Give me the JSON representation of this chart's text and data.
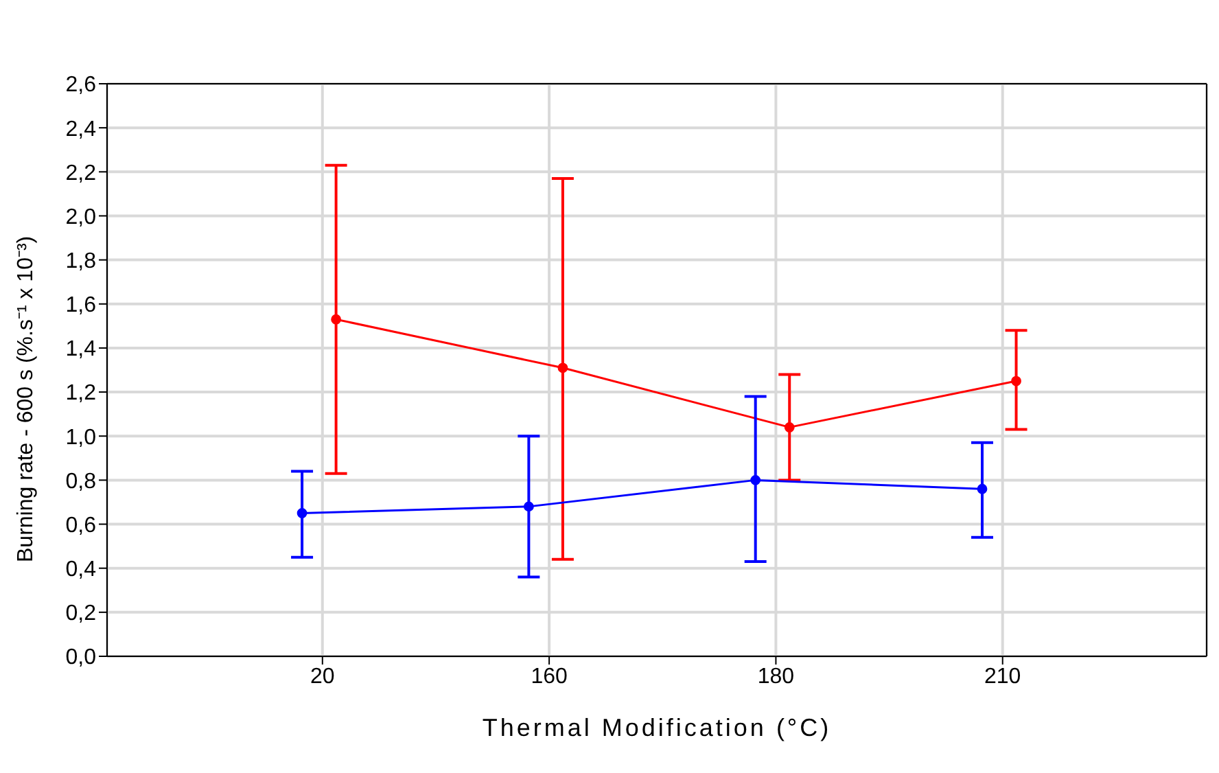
{
  "chart_data": {
    "type": "line",
    "xlabel": "Thermal Modification (°C)",
    "ylabel": "Burning rate - 600 s (%.s⁻¹ x 10⁻³)",
    "categories": [
      "20",
      "160",
      "180",
      "210"
    ],
    "series": [
      {
        "color": "#ff0000",
        "values": [
          1.53,
          1.31,
          1.04,
          1.25
        ],
        "errors": [
          [
            0.83,
            2.23
          ],
          [
            0.44,
            2.17
          ],
          [
            0.8,
            1.28
          ],
          [
            1.03,
            1.48
          ]
        ]
      },
      {
        "color": "#0000ff",
        "values": [
          0.65,
          0.68,
          0.8,
          0.76
        ],
        "errors": [
          [
            0.45,
            0.84
          ],
          [
            0.36,
            1.0
          ],
          [
            0.43,
            1.18
          ],
          [
            0.54,
            0.97
          ]
        ]
      }
    ],
    "ylim": [
      0,
      2.6
    ],
    "yticks": [
      {
        "value": 0,
        "label": "0,0"
      },
      {
        "value": 0.2,
        "label": "0,2"
      },
      {
        "value": 0.4,
        "label": "0,4"
      },
      {
        "value": 0.6,
        "label": "0,6"
      },
      {
        "value": 0.8,
        "label": "0,8"
      },
      {
        "value": 1.0,
        "label": "1,0"
      },
      {
        "value": 1.2,
        "label": "1,2"
      },
      {
        "value": 1.4,
        "label": "1,4"
      },
      {
        "value": 1.6,
        "label": "1,6"
      },
      {
        "value": 1.8,
        "label": "1,8"
      },
      {
        "value": 2.0,
        "label": "2,0"
      },
      {
        "value": 2.2,
        "label": "2,2"
      },
      {
        "value": 2.4,
        "label": "2,4"
      },
      {
        "value": 2.6,
        "label": "2,6"
      }
    ],
    "grid": true,
    "marker": "circle",
    "line_style": "solid"
  }
}
